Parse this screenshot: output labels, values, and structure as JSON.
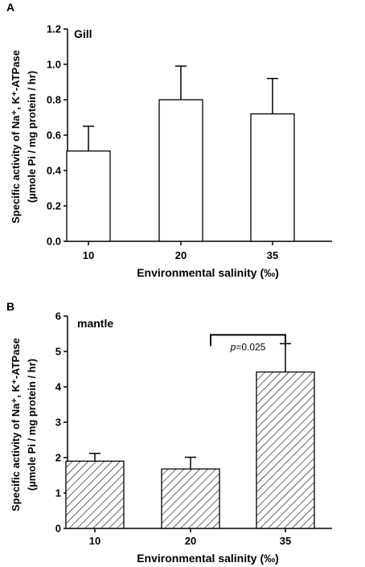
{
  "chart_data": [
    {
      "panel_label": "A",
      "type": "bar",
      "title": "Gill",
      "categories": [
        "10",
        "20",
        "35"
      ],
      "values": [
        0.51,
        0.8,
        0.72
      ],
      "errors": [
        0.14,
        0.19,
        0.2
      ],
      "xlabel": "Environmental salinity (‰)",
      "ylabel_lines": [
        "Specific activity of Na⁺, K⁺-ATPase",
        "(µmole Pi / mg protein / hr)"
      ],
      "ylim": [
        0,
        1.2
      ],
      "yticks": [
        "0.0",
        "0.2",
        "0.4",
        "0.6",
        "0.8",
        "1.0",
        "1.2"
      ],
      "fill": "open",
      "grid": false
    },
    {
      "panel_label": "B",
      "type": "bar",
      "title": "mantle",
      "categories": [
        "10",
        "20",
        "35"
      ],
      "values": [
        1.9,
        1.68,
        4.42
      ],
      "errors": [
        0.22,
        0.33,
        0.8
      ],
      "xlabel": "Environmental salinity (‰)",
      "ylabel_lines": [
        "Specific activity of Na⁺, K⁺-ATPase",
        "(µmole Pi / mg protein / hr)"
      ],
      "ylim": [
        0,
        6
      ],
      "yticks": [
        "0",
        "1",
        "2",
        "3",
        "4",
        "5",
        "6"
      ],
      "fill": "hatched",
      "grid": false,
      "annotation": {
        "p_symbol": "p",
        "p_rest": "=0.025",
        "between": [
          "20",
          "35"
        ]
      }
    }
  ]
}
